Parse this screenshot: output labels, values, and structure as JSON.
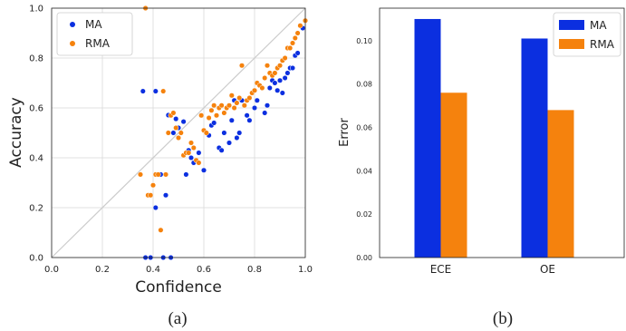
{
  "colors": {
    "ma": "#0b2fe0",
    "rma": "#f5820d",
    "diagonal": "#cccccc",
    "grid": "#d9d9d9",
    "axis": "#222222"
  },
  "captions": {
    "a": "(a)",
    "b": "(b)"
  },
  "chart_data": [
    {
      "type": "scatter",
      "title": "",
      "xlabel": "Confidence",
      "ylabel": "Accuracy",
      "xlim": [
        0,
        1
      ],
      "ylim": [
        0,
        1
      ],
      "xticks": [
        0,
        0.2,
        0.4,
        0.6,
        0.8,
        1
      ],
      "yticks": [
        0,
        0.2,
        0.4,
        0.6,
        0.8,
        1
      ],
      "xtick_labels": [
        "0.0",
        "0.2",
        "0.4",
        "0.6",
        "0.8",
        "1.0"
      ],
      "ytick_labels": [
        "0.0",
        "0.2",
        "0.4",
        "0.6",
        "0.8",
        "1.0"
      ],
      "grid": true,
      "diagonal": true,
      "legend": "top-left",
      "series": [
        {
          "name": "MA",
          "color": "#0b2fe0",
          "points": [
            [
              0.36,
              0.667
            ],
            [
              0.37,
              0.0
            ],
            [
              0.39,
              0.0
            ],
            [
              0.41,
              0.667
            ],
            [
              0.41,
              0.2
            ],
            [
              0.43,
              0.333
            ],
            [
              0.44,
              0.0
            ],
            [
              0.45,
              0.25
            ],
            [
              0.47,
              0.0
            ],
            [
              0.46,
              0.571
            ],
            [
              0.48,
              0.5
            ],
            [
              0.49,
              0.556
            ],
            [
              0.5,
              0.52
            ],
            [
              0.52,
              0.545
            ],
            [
              0.53,
              0.333
            ],
            [
              0.54,
              0.43
            ],
            [
              0.55,
              0.4
            ],
            [
              0.56,
              0.38
            ],
            [
              0.58,
              0.42
            ],
            [
              0.6,
              0.35
            ],
            [
              0.61,
              0.5
            ],
            [
              0.62,
              0.49
            ],
            [
              0.63,
              0.53
            ],
            [
              0.64,
              0.54
            ],
            [
              0.66,
              0.44
            ],
            [
              0.67,
              0.43
            ],
            [
              0.68,
              0.5
            ],
            [
              0.7,
              0.46
            ],
            [
              0.71,
              0.55
            ],
            [
              0.72,
              0.63
            ],
            [
              0.73,
              0.48
            ],
            [
              0.74,
              0.5
            ],
            [
              0.75,
              0.63
            ],
            [
              0.77,
              0.57
            ],
            [
              0.78,
              0.55
            ],
            [
              0.8,
              0.6
            ],
            [
              0.81,
              0.63
            ],
            [
              0.82,
              0.69
            ],
            [
              0.84,
              0.58
            ],
            [
              0.85,
              0.61
            ],
            [
              0.86,
              0.68
            ],
            [
              0.87,
              0.71
            ],
            [
              0.88,
              0.7
            ],
            [
              0.89,
              0.67
            ],
            [
              0.9,
              0.71
            ],
            [
              0.91,
              0.66
            ],
            [
              0.92,
              0.72
            ],
            [
              0.93,
              0.74
            ],
            [
              0.94,
              0.76
            ],
            [
              0.95,
              0.76
            ],
            [
              0.96,
              0.81
            ],
            [
              0.97,
              0.82
            ],
            [
              0.99,
              0.92
            ]
          ]
        },
        {
          "name": "RMA",
          "color": "#f5820d",
          "points": [
            [
              0.35,
              0.333
            ],
            [
              0.37,
              1.0
            ],
            [
              0.38,
              0.25
            ],
            [
              0.39,
              0.25
            ],
            [
              0.4,
              0.29
            ],
            [
              0.41,
              0.333
            ],
            [
              0.42,
              0.333
            ],
            [
              0.43,
              0.11
            ],
            [
              0.44,
              0.667
            ],
            [
              0.45,
              0.333
            ],
            [
              0.46,
              0.5
            ],
            [
              0.47,
              0.57
            ],
            [
              0.48,
              0.58
            ],
            [
              0.49,
              0.52
            ],
            [
              0.5,
              0.48
            ],
            [
              0.51,
              0.5
            ],
            [
              0.52,
              0.41
            ],
            [
              0.53,
              0.42
            ],
            [
              0.54,
              0.42
            ],
            [
              0.55,
              0.46
            ],
            [
              0.56,
              0.44
            ],
            [
              0.57,
              0.39
            ],
            [
              0.58,
              0.38
            ],
            [
              0.59,
              0.57
            ],
            [
              0.6,
              0.51
            ],
            [
              0.61,
              0.5
            ],
            [
              0.62,
              0.56
            ],
            [
              0.63,
              0.59
            ],
            [
              0.64,
              0.61
            ],
            [
              0.65,
              0.57
            ],
            [
              0.66,
              0.6
            ],
            [
              0.67,
              0.61
            ],
            [
              0.68,
              0.58
            ],
            [
              0.69,
              0.6
            ],
            [
              0.7,
              0.61
            ],
            [
              0.71,
              0.65
            ],
            [
              0.72,
              0.6
            ],
            [
              0.73,
              0.62
            ],
            [
              0.74,
              0.64
            ],
            [
              0.75,
              0.77
            ],
            [
              0.76,
              0.61
            ],
            [
              0.77,
              0.63
            ],
            [
              0.78,
              0.64
            ],
            [
              0.79,
              0.66
            ],
            [
              0.8,
              0.67
            ],
            [
              0.81,
              0.7
            ],
            [
              0.82,
              0.69
            ],
            [
              0.83,
              0.68
            ],
            [
              0.84,
              0.72
            ],
            [
              0.85,
              0.77
            ],
            [
              0.86,
              0.74
            ],
            [
              0.87,
              0.73
            ],
            [
              0.88,
              0.74
            ],
            [
              0.89,
              0.76
            ],
            [
              0.9,
              0.77
            ],
            [
              0.91,
              0.79
            ],
            [
              0.92,
              0.8
            ],
            [
              0.93,
              0.84
            ],
            [
              0.94,
              0.84
            ],
            [
              0.95,
              0.86
            ],
            [
              0.96,
              0.88
            ],
            [
              0.97,
              0.9
            ],
            [
              0.98,
              0.93
            ],
            [
              1.0,
              0.95
            ]
          ]
        }
      ]
    },
    {
      "type": "bar",
      "title": "",
      "xlabel": "",
      "ylabel": "Error",
      "categories": [
        "ECE",
        "OE"
      ],
      "ylim": [
        0,
        0.115
      ],
      "yticks": [
        0,
        0.02,
        0.04,
        0.06,
        0.08,
        0.1
      ],
      "ytick_labels": [
        "0.00",
        "0.02",
        "0.04",
        "0.06",
        "0.08",
        "0.10"
      ],
      "grid": false,
      "legend": "top-right",
      "series": [
        {
          "name": "MA",
          "color": "#0b2fe0",
          "values": [
            0.11,
            0.101
          ]
        },
        {
          "name": "RMA",
          "color": "#f5820d",
          "values": [
            0.076,
            0.068
          ]
        }
      ]
    }
  ]
}
